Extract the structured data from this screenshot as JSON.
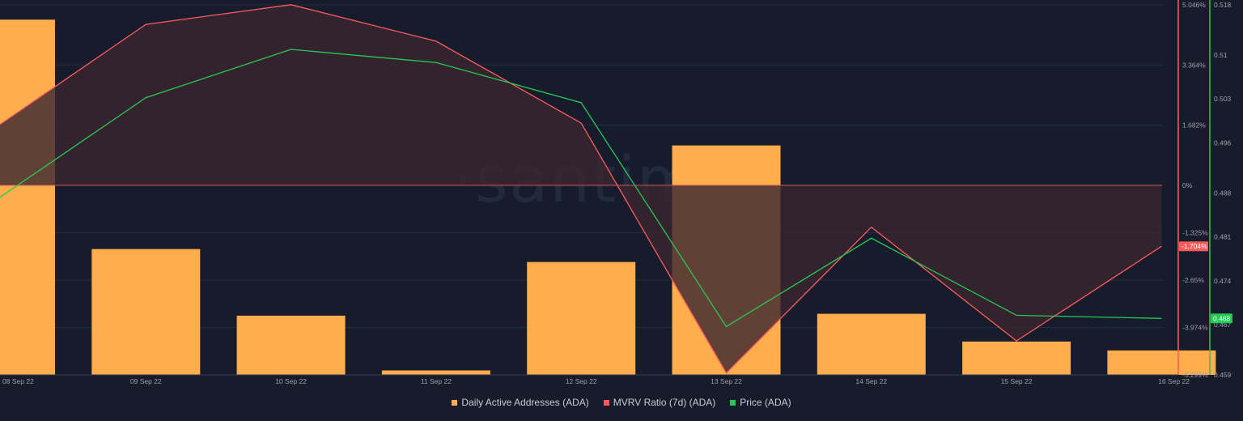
{
  "watermark": "·santim",
  "colors": {
    "background": "#171c2c",
    "bars": "#ffad4d",
    "mvrv": "#ff5b5b",
    "mvrv_fill": "#3a2630",
    "price": "#26c953",
    "grid": "#262d40",
    "text": "#9aa0ad"
  },
  "chart_data": {
    "type": "bar+line",
    "categories": [
      "08 Sep 22",
      "09 Sep 22",
      "10 Sep 22",
      "11 Sep 22",
      "12 Sep 22",
      "13 Sep 22",
      "14 Sep 22",
      "15 Sep 22",
      "16 Sep 22"
    ],
    "series": [
      {
        "name": "Daily Active Addresses (ADA)",
        "type": "bar",
        "color": "#ffad4d",
        "relative_height": [
          0.96,
          0.34,
          0.16,
          0.012,
          0.305,
          0.62,
          0.165,
          0.09,
          0.066
        ]
      },
      {
        "name": "MVRV Ratio (7d) (ADA)",
        "type": "area-line",
        "color": "#ff5b5b",
        "unit": "%",
        "values": [
          0.33,
          4.5,
          5.05,
          4.03,
          1.74,
          -5.25,
          -1.17,
          -4.35,
          -1.704
        ],
        "x_offset": [
          -0.5,
          0,
          0,
          0,
          0,
          0,
          0,
          0,
          0
        ]
      },
      {
        "name": "Price (ADA)",
        "type": "line",
        "color": "#26c953",
        "values": [
          0.4795,
          0.5032,
          0.5109,
          0.5088,
          0.5024,
          0.4667,
          0.4808,
          0.4685,
          0.468
        ],
        "x_offset": [
          -0.5,
          0,
          0,
          0,
          0,
          0,
          0,
          0,
          0
        ]
      }
    ],
    "mvrv_axis": {
      "ticks": [
        5.046,
        3.364,
        1.682,
        0,
        -1.325,
        -2.65,
        -3.974,
        -5.299
      ],
      "tick_labels": [
        "5.046%",
        "3.364%",
        "1.682%",
        "0%",
        "-1.325%",
        "-2.65%",
        "-3.974%",
        "-5.299%"
      ],
      "range": [
        -5.299,
        5.046
      ],
      "current_label": "-1.704%"
    },
    "price_axis": {
      "ticks": [
        0.518,
        0.51,
        0.503,
        0.496,
        0.488,
        0.481,
        0.474,
        0.467,
        0.459
      ],
      "tick_labels": [
        "0.518",
        "0.51",
        "0.503",
        "0.496",
        "0.488",
        "0.481",
        "0.474",
        "0.467",
        "0.459"
      ],
      "range": [
        0.459,
        0.518
      ],
      "current_label": "0.468"
    },
    "legend": {
      "placement": "bottom-center",
      "items": [
        "Daily Active Addresses (ADA)",
        "MVRV Ratio (7d) (ADA)",
        "Price (ADA)"
      ]
    },
    "grid": true
  }
}
